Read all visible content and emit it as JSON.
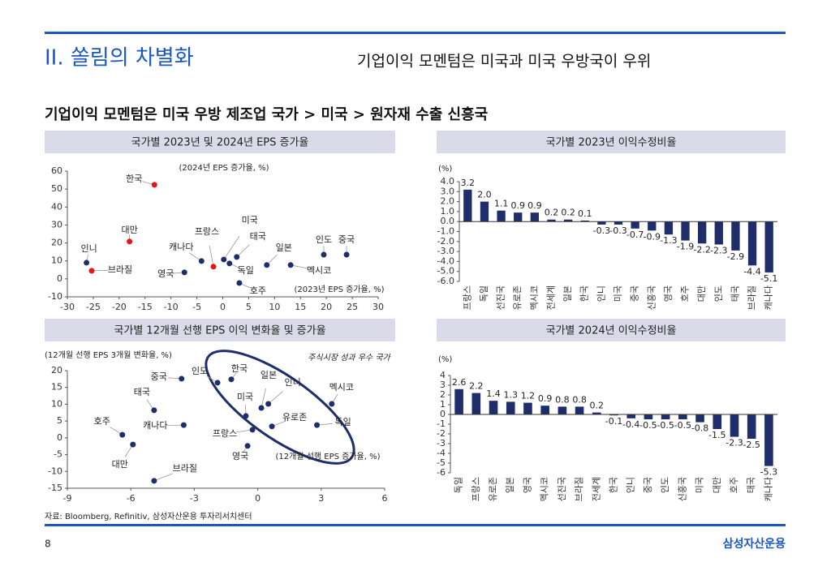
{
  "header": {
    "title": "II. 쏠림의 차별화",
    "subtitle": "기업이익 모멘텀은 미국과 미국 우방국이 우위"
  },
  "heading": "기업이익 모멘텀은 미국 우방 제조업 국가 > 미국 > 원자재 수출 신흥국",
  "source": "자료: Bloomberg, Refinitiv, 삼성자산운용 투자리서치센터",
  "page_number": "8",
  "logo": "삼성자산운용",
  "chart_data": [
    {
      "type": "scatter",
      "title": "국가별 2023년 및 2024년 EPS 증가율",
      "y_label": "(2024년 EPS 증가율, %)",
      "x_label": "(2023년 EPS 증가율, %)",
      "point_labels": [
        "한국",
        "대만",
        "인니",
        "브라질",
        "영국",
        "캐나다",
        "프랑스",
        "독일",
        "미국",
        "태국",
        "호주",
        "일본",
        "멕시코",
        "인도",
        "중국"
      ],
      "x": [
        -13.2,
        -18,
        -26.3,
        -25.3,
        -7.4,
        -4.1,
        -1.8,
        1.3,
        0.2,
        2.7,
        3.2,
        8.5,
        13.1,
        19.5,
        23.9
      ],
      "values": [
        52.4,
        20.8,
        9,
        4.5,
        3.6,
        9.9,
        6.8,
        8.6,
        10.8,
        12.2,
        -2.3,
        7.7,
        7.7,
        13.5,
        13.5
      ],
      "colors": [
        "#e8141b",
        "#e8141b",
        "#1f2d6b",
        "#e8141b",
        "#1f2d6b",
        "#1f2d6b",
        "#e8141b",
        "#1f2d6b",
        "#1f2d6b",
        "#1f2d6b",
        "#1f2d6b",
        "#1f2d6b",
        "#1f2d6b",
        "#1f2d6b",
        "#1f2d6b"
      ],
      "xlim": [
        -30,
        30
      ],
      "xticks": [
        -30,
        -25,
        -20,
        -15,
        -10,
        -5,
        0,
        5,
        10,
        15,
        20,
        25,
        30
      ],
      "ylim": [
        -10,
        60
      ],
      "yticks": [
        -10,
        0,
        10,
        20,
        30,
        40,
        50,
        60
      ]
    },
    {
      "type": "bar",
      "title": "국가별 2023년 이익수정비율",
      "y_label": "(%)",
      "color": "#1f2d6b",
      "categories": [
        "프랑스",
        "독일",
        "선진국",
        "유로존",
        "멕시코",
        "전세계",
        "일본",
        "한국",
        "인니",
        "미국",
        "중국",
        "신흥국",
        "영국",
        "호주",
        "대만",
        "인도",
        "태국",
        "브라질",
        "캐나다"
      ],
      "values": [
        3.2,
        2.0,
        1.1,
        0.9,
        0.9,
        0.2,
        0.2,
        0.1,
        -0.3,
        -0.3,
        -0.7,
        -0.9,
        -1.3,
        -1.9,
        -2.2,
        -2.3,
        -2.9,
        -4.4,
        -5.1
      ],
      "value_labels": [
        "3.2",
        "2.0",
        "1.1",
        "0.9",
        "0.9",
        "0.2",
        "0.2",
        "0.1",
        "-0.3",
        "-0.3",
        "-0.7",
        "-0.9",
        "-1.3",
        "-1.9",
        "-2.2",
        "-2.3",
        "-2.9",
        "-4.4",
        "-5.1"
      ],
      "ylim": [
        -6,
        4
      ],
      "yticks": [
        {
          "value": -6,
          "label": "-6.0"
        },
        {
          "value": -5,
          "label": "-5.0"
        },
        {
          "value": -4,
          "label": "-4.0"
        },
        {
          "value": -3,
          "label": "-3.0"
        },
        {
          "value": -2,
          "label": "-2.0"
        },
        {
          "value": -1,
          "label": "-1.0"
        },
        {
          "value": 0,
          "label": "0.0"
        },
        {
          "value": 1,
          "label": "1.0"
        },
        {
          "value": 2,
          "label": "2.0"
        },
        {
          "value": 3,
          "label": "3.0"
        },
        {
          "value": 4,
          "label": "4.0"
        }
      ]
    },
    {
      "type": "scatter",
      "title": "국가별 12개월 선행 EPS 이익 변화율 및 증가율",
      "y_label": "(12개월 선행 EPS 3개월 변화율, %)",
      "x_label": "(12개월 선행 EPS 증가율, %)",
      "annotation": "주식시장 성과 우수 국가",
      "color": "#1f2d6b",
      "point_labels": [
        "중국",
        "인도",
        "한국",
        "태국",
        "캐나다",
        "호주",
        "대만",
        "브라질",
        "미국",
        "일본",
        "인니",
        "프랑스",
        "영국",
        "유로존",
        "독일",
        "멕시코"
      ],
      "x": [
        -3.6,
        -1.9,
        -1.25,
        -4.9,
        -3.5,
        -6.4,
        -5.9,
        -4.9,
        -0.56,
        0.17,
        0.5,
        -0.25,
        -0.48,
        0.67,
        2.8,
        3.5
      ],
      "values": [
        17.6,
        16.4,
        17.4,
        8.2,
        3.8,
        0.9,
        -2.0,
        -12.8,
        6.5,
        8.9,
        10.1,
        2.4,
        -2.4,
        3.4,
        3.8,
        10.1
      ],
      "xlim": [
        -9,
        6
      ],
      "xticks": [
        -9,
        -6,
        -3,
        0,
        3,
        6
      ],
      "ylim": [
        -15,
        20
      ],
      "yticks": [
        -15,
        -10,
        -5,
        0,
        5,
        10,
        15,
        20
      ]
    },
    {
      "type": "bar",
      "title": "국가별 2024년 이익수정비율",
      "y_label": "(%)",
      "color": "#1f2d6b",
      "categories": [
        "독일",
        "프랑스",
        "유로존",
        "일본",
        "영국",
        "멕시코",
        "선진국",
        "브라질",
        "전세계",
        "한국",
        "인니",
        "중국",
        "인도",
        "신흥국",
        "미국",
        "대만",
        "호주",
        "태국",
        "캐나다"
      ],
      "values": [
        2.6,
        2.2,
        1.4,
        1.3,
        1.2,
        0.9,
        0.8,
        0.8,
        0.2,
        -0.1,
        -0.4,
        -0.5,
        -0.5,
        -0.5,
        -0.8,
        -1.5,
        -2.3,
        -2.5,
        -5.3
      ],
      "ylim": [
        -6,
        4
      ],
      "yticks": [
        -6,
        -5,
        -4,
        -3,
        -2,
        -1,
        0,
        1,
        2,
        3,
        4
      ]
    }
  ]
}
